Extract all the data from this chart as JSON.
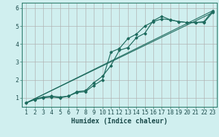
{
  "background_color": "#d0efef",
  "grid_color": "#b0b0b0",
  "line_color": "#1e6b5e",
  "xlabel": "Humidex (Indice chaleur)",
  "xlabel_fontsize": 7,
  "tick_fontsize": 6,
  "xlim": [
    0.5,
    23.5
  ],
  "ylim": [
    0.5,
    6.3
  ],
  "series1_x": [
    1,
    2,
    3,
    4,
    5,
    6,
    7,
    8,
    9,
    10,
    11,
    12,
    13,
    14,
    15,
    16,
    17,
    18,
    19,
    20,
    21,
    22,
    23
  ],
  "series1_y": [
    0.72,
    0.9,
    1.0,
    1.05,
    1.0,
    1.1,
    1.35,
    1.4,
    1.85,
    2.2,
    2.8,
    3.65,
    3.8,
    4.35,
    4.6,
    5.3,
    5.55,
    5.35,
    5.25,
    5.2,
    5.2,
    5.25,
    5.85
  ],
  "series2_x": [
    1,
    2,
    3,
    4,
    5,
    6,
    7,
    8,
    9,
    10,
    11,
    12,
    13,
    14,
    15,
    16,
    17,
    18,
    19,
    20,
    21,
    22,
    23
  ],
  "series2_y": [
    0.72,
    0.93,
    1.05,
    1.1,
    1.05,
    1.1,
    1.3,
    1.35,
    1.7,
    2.0,
    3.55,
    3.75,
    4.3,
    4.55,
    5.0,
    5.25,
    5.4,
    5.35,
    5.25,
    5.2,
    5.2,
    5.2,
    5.75
  ],
  "line1_x": [
    1,
    23
  ],
  "line1_y": [
    0.72,
    5.85
  ],
  "line2_x": [
    1,
    23
  ],
  "line2_y": [
    0.72,
    5.75
  ],
  "xtick_labels": [
    "1",
    "2",
    "3",
    "4",
    "5",
    "6",
    "7",
    "8",
    "9",
    "10",
    "11",
    "12",
    "13",
    "14",
    "15",
    "16",
    "17",
    "18",
    "19",
    "20",
    "21",
    "22",
    "23"
  ],
  "ytick_labels": [
    "1",
    "2",
    "3",
    "4",
    "5",
    "6"
  ]
}
